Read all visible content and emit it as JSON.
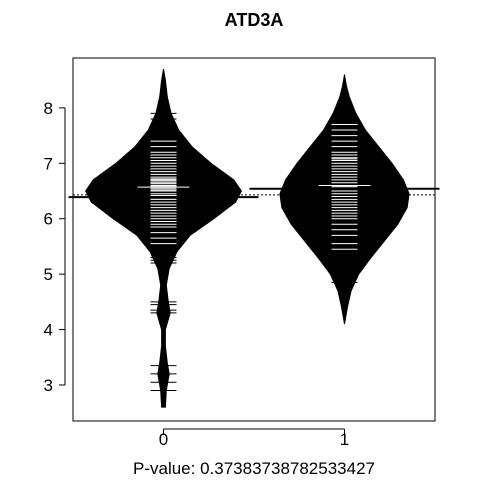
{
  "chart_data": {
    "type": "beanplot",
    "title": "ATD3A",
    "xlabel": "P-value: 0.37383738782533427",
    "ylabel": "",
    "categories": [
      "0",
      "1"
    ],
    "xlim": [
      -0.5,
      1.5
    ],
    "ylim": [
      2.35,
      8.9
    ],
    "yticks": [
      3,
      4,
      5,
      6,
      7,
      8
    ],
    "overall_mean": 6.43,
    "grid": false,
    "series": [
      {
        "category": "0",
        "mean": 6.39,
        "median": 6.57,
        "density": [
          [
            2.6,
            0.02
          ],
          [
            2.9,
            0.03
          ],
          [
            3.2,
            0.06
          ],
          [
            3.4,
            0.04
          ],
          [
            3.7,
            0.02
          ],
          [
            4.0,
            0.02
          ],
          [
            4.3,
            0.07
          ],
          [
            4.5,
            0.05
          ],
          [
            4.8,
            0.03
          ],
          [
            5.1,
            0.06
          ],
          [
            5.4,
            0.14
          ],
          [
            5.7,
            0.28
          ],
          [
            6.0,
            0.53
          ],
          [
            6.3,
            0.76
          ],
          [
            6.5,
            0.82
          ],
          [
            6.7,
            0.74
          ],
          [
            7.0,
            0.5
          ],
          [
            7.3,
            0.3
          ],
          [
            7.6,
            0.16
          ],
          [
            7.9,
            0.08
          ],
          [
            8.2,
            0.04
          ],
          [
            8.5,
            0.02
          ],
          [
            8.7,
            0.0
          ]
        ],
        "points": [
          2.9,
          3.05,
          3.2,
          3.35,
          4.3,
          4.35,
          4.45,
          4.5,
          5.2,
          5.25,
          5.3,
          5.45,
          5.55,
          5.65,
          5.75,
          5.85,
          5.9,
          5.95,
          6.0,
          6.05,
          6.1,
          6.15,
          6.2,
          6.25,
          6.3,
          6.35,
          6.38,
          6.42,
          6.45,
          6.5,
          6.52,
          6.55,
          6.58,
          6.6,
          6.63,
          6.65,
          6.68,
          6.7,
          6.72,
          6.75,
          6.8,
          6.85,
          6.9,
          6.95,
          7.0,
          7.05,
          7.1,
          7.15,
          7.2,
          7.3,
          7.4,
          7.6,
          7.8,
          7.9
        ]
      },
      {
        "category": "1",
        "mean": 6.54,
        "median": 6.6,
        "density": [
          [
            4.1,
            0.0
          ],
          [
            4.4,
            0.03
          ],
          [
            4.7,
            0.07
          ],
          [
            5.0,
            0.15
          ],
          [
            5.3,
            0.28
          ],
          [
            5.6,
            0.42
          ],
          [
            5.9,
            0.56
          ],
          [
            6.2,
            0.66
          ],
          [
            6.45,
            0.68
          ],
          [
            6.7,
            0.62
          ],
          [
            7.0,
            0.5
          ],
          [
            7.3,
            0.36
          ],
          [
            7.6,
            0.22
          ],
          [
            7.9,
            0.12
          ],
          [
            8.2,
            0.05
          ],
          [
            8.4,
            0.02
          ],
          [
            8.6,
            0.0
          ]
        ],
        "points": [
          4.85,
          5.45,
          5.55,
          5.7,
          5.8,
          5.9,
          6.0,
          6.05,
          6.1,
          6.15,
          6.2,
          6.25,
          6.3,
          6.35,
          6.4,
          6.45,
          6.5,
          6.55,
          6.58,
          6.6,
          6.65,
          6.7,
          6.75,
          6.8,
          6.85,
          6.9,
          6.95,
          7.0,
          7.05,
          7.08,
          7.1,
          7.15,
          7.2,
          7.3,
          7.4,
          7.5,
          7.6,
          7.7,
          7.8
        ]
      }
    ]
  }
}
